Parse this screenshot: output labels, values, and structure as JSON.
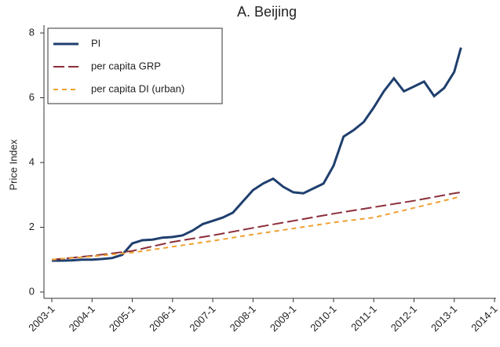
{
  "chart_data": {
    "type": "line",
    "title": "A. Beijing",
    "y_label": "Price Index",
    "xlim": [
      "2003-1",
      "2014-1"
    ],
    "xticks": [
      "2003-1",
      "2004-1",
      "2005-1",
      "2006-1",
      "2007-1",
      "2008-1",
      "2009-1",
      "2010-1",
      "2011-1",
      "2012-1",
      "2013-1",
      "2014-1"
    ],
    "ylim": [
      0,
      8
    ],
    "yticks": [
      0,
      2,
      4,
      6,
      8
    ],
    "legend": "top-left",
    "series": [
      {
        "name": "PI",
        "color": "#1f3f6e",
        "style": "solid",
        "x": [
          "2003-1",
          "2003-4",
          "2003-7",
          "2003-10",
          "2004-1",
          "2004-4",
          "2004-7",
          "2004-10",
          "2005-1",
          "2005-4",
          "2005-7",
          "2005-10",
          "2006-1",
          "2006-4",
          "2006-7",
          "2006-10",
          "2007-1",
          "2007-4",
          "2007-7",
          "2007-10",
          "2008-1",
          "2008-4",
          "2008-7",
          "2008-10",
          "2009-1",
          "2009-4",
          "2009-7",
          "2009-10",
          "2010-1",
          "2010-4",
          "2010-7",
          "2010-10",
          "2011-1",
          "2011-4",
          "2011-7",
          "2011-10",
          "2012-1",
          "2012-4",
          "2012-7",
          "2012-10",
          "2013-1",
          "2013-3"
        ],
        "values": [
          0.97,
          0.97,
          0.98,
          1.0,
          1.0,
          1.02,
          1.05,
          1.15,
          1.5,
          1.6,
          1.62,
          1.68,
          1.7,
          1.75,
          1.9,
          2.1,
          2.2,
          2.3,
          2.45,
          2.8,
          3.15,
          3.35,
          3.5,
          3.25,
          3.08,
          3.05,
          3.2,
          3.35,
          3.9,
          4.8,
          5.0,
          5.25,
          5.7,
          6.2,
          6.6,
          6.2,
          6.35,
          6.5,
          6.05,
          6.3,
          6.8,
          7.55
        ]
      },
      {
        "name": "per capita GRP",
        "color": "#8b2e3a",
        "style": "longdash",
        "x": [
          "2003-1",
          "2004-1",
          "2005-1",
          "2006-1",
          "2007-1",
          "2008-1",
          "2009-1",
          "2010-1",
          "2011-1",
          "2012-1",
          "2013-1",
          "2013-3"
        ],
        "values": [
          1.0,
          1.12,
          1.27,
          1.55,
          1.75,
          1.98,
          2.2,
          2.42,
          2.62,
          2.82,
          3.05,
          3.08
        ]
      },
      {
        "name": "per capita DI (urban)",
        "color": "#f0a030",
        "style": "shortdash",
        "x": [
          "2003-1",
          "2004-1",
          "2005-1",
          "2006-1",
          "2007-1",
          "2008-1",
          "2009-1",
          "2010-1",
          "2011-1",
          "2012-1",
          "2013-1",
          "2013-3"
        ],
        "values": [
          1.0,
          1.1,
          1.22,
          1.4,
          1.58,
          1.78,
          1.96,
          2.15,
          2.3,
          2.6,
          2.9,
          2.95
        ]
      }
    ]
  }
}
